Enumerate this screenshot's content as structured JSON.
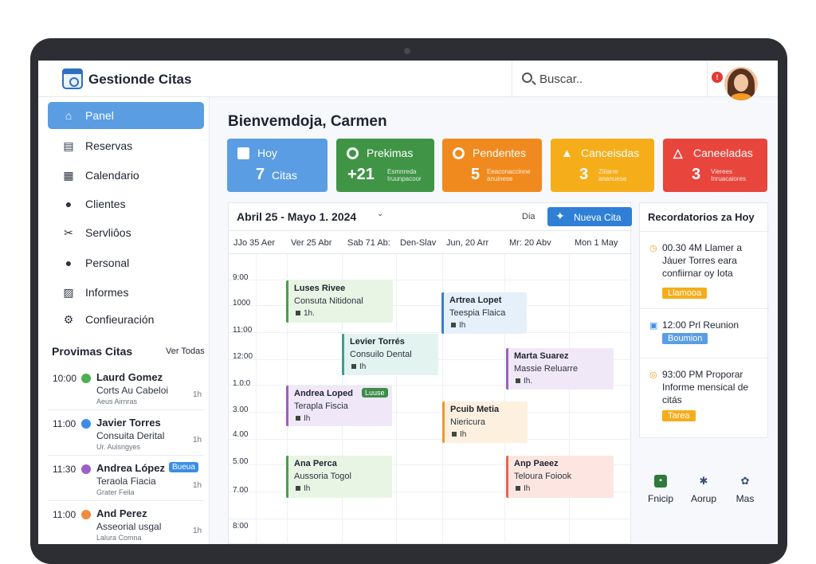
{
  "app": {
    "title": "Gestionde Citas"
  },
  "search": {
    "placeholder": "Buscar.."
  },
  "notifications": {
    "count": "!"
  },
  "sidebar": {
    "items": [
      {
        "label": "Panel",
        "icon": "home-icon",
        "active": true
      },
      {
        "label": "Reservas",
        "icon": "bookings-icon"
      },
      {
        "label": "Calendario",
        "icon": "calendar-icon"
      },
      {
        "label": "Clientes",
        "icon": "user-icon"
      },
      {
        "label": "Servliôos",
        "icon": "scissors-icon"
      },
      {
        "label": "Personal",
        "icon": "person-icon"
      },
      {
        "label": "Informes",
        "icon": "chart-icon"
      },
      {
        "label": "Confieuración",
        "icon": "gear-icon"
      }
    ],
    "upcoming_title": "Provimas Citas",
    "upcoming_link": "Ver Todas",
    "upcoming": [
      {
        "time": "10:00",
        "name": "Laurd Gomez",
        "service": "Corts Au Cabeloi",
        "staff": "Aeus Airnras",
        "duration": "1h",
        "color": "#4caf50",
        "badge": ""
      },
      {
        "time": "11:00",
        "name": "Javier Torres",
        "service": "Consuita Derital",
        "staff": "Ur. Auisngyes",
        "duration": "1h",
        "color": "#3a8ee6",
        "badge": ""
      },
      {
        "time": "11:30",
        "name": "Andrea López",
        "service": "Teraola Fiacia",
        "staff": "Grater Feila",
        "duration": "1h",
        "color": "#9c5fc4",
        "badge": "Bueua"
      },
      {
        "time": "11:00",
        "name": "And Perez",
        "service": "Asseorial usgal",
        "staff": "Lalura Comna",
        "duration": "1h",
        "color": "#f08c3c",
        "badge": ""
      }
    ]
  },
  "main": {
    "welcome": "Bienvemdoja, Carmen",
    "stats": [
      {
        "label": "Hoy",
        "value": "7",
        "suffix": "Citas",
        "detail": "",
        "color": "#5a9de3",
        "icon": "calendar-icon"
      },
      {
        "label": "Prekimas",
        "value": "+21",
        "suffix": "",
        "detail": "Esmnreda Iruunpacoor",
        "color": "#3f9545",
        "icon": "circle-icon"
      },
      {
        "label": "Pendentes",
        "value": "5",
        "suffix": "",
        "detail": "Eeaconaccinne anuinese",
        "color": "#f08a1e",
        "icon": "circle-icon"
      },
      {
        "label": "Canceisdas",
        "value": "3",
        "suffix": "",
        "detail": "Ziiiarre ananuese",
        "color": "#f6ad1a",
        "icon": "warning-icon"
      },
      {
        "label": "Caneeladas",
        "value": "3",
        "suffix": "",
        "detail": "Vierees Inruacaiores",
        "color": "#e8453c",
        "icon": "alert-icon"
      }
    ]
  },
  "calendar": {
    "range": "Abril 25 - Mayo 1. 2024",
    "view": "Dia",
    "new_button": "Nueva Cita",
    "days": [
      "JJo 35 Aer",
      "Ver 25 Abr",
      "Sab 71 Ab:",
      "Den-Slav",
      "Jun, 20 Arr",
      "Mr: 20 Abv",
      "Mon 1 May"
    ],
    "hours": [
      "9:00",
      "1000",
      "11:00",
      "12:00",
      "1.0:0",
      "3.00",
      "4.00",
      "5.00",
      "7.00",
      "8:00"
    ],
    "events": [
      {
        "title": "Luses Rivee",
        "subtitle": "Consuta Nitidonal",
        "duration": "1h.",
        "badge": "",
        "bg": "#e8f5e4",
        "border": "#4a9c4e"
      },
      {
        "title": "Artrea Lopet",
        "subtitle": "Teespia Flaica",
        "duration": "Ih",
        "badge": "",
        "bg": "#e6f0fb",
        "border": "#3a7ec9"
      },
      {
        "title": "Levier Torrés",
        "subtitle": "Consuilo Dental",
        "duration": "Ih",
        "badge": "",
        "bg": "#e3f3f0",
        "border": "#3f9e8c"
      },
      {
        "title": "Marta Suarez",
        "subtitle": "Massie Reluarre",
        "duration": "Ih.",
        "badge": "",
        "bg": "#f1e8f7",
        "border": "#9a5fc0"
      },
      {
        "title": "Andrea Loped",
        "subtitle": "Terapla Fiscia",
        "duration": "Ih",
        "badge": "Luuse",
        "bg": "#f0e8f8",
        "border": "#9a5fc0"
      },
      {
        "title": "Pcuib Metia",
        "subtitle": "Niericura",
        "duration": "Ih",
        "badge": "",
        "bg": "#fdf0de",
        "border": "#f0962e"
      },
      {
        "title": "Ana Perca",
        "subtitle": "Aussoria Togol",
        "duration": "Ih",
        "badge": "",
        "bg": "#e8f5e4",
        "border": "#4a9c4e"
      },
      {
        "title": "Anp Paeez",
        "subtitle": "Teloura Foiook",
        "duration": "Ih",
        "badge": "",
        "bg": "#fde6e1",
        "border": "#e8654c"
      }
    ]
  },
  "reminders": {
    "title": "Recordatorios za Hoy",
    "items": [
      {
        "text": "00.30 4M  Llamer a Jáuer Torres eara confiirnar oy Iota",
        "badge": "Llamooa",
        "badge_color": "#f6ad1a",
        "icon": "clock-icon"
      },
      {
        "text": "12:00 Prl Reunion",
        "badge": "Boumion",
        "badge_color": "#5a9de3",
        "icon": "meeting-icon"
      },
      {
        "text": "93:00 PM  Proporar Informe mensical de citás",
        "badge": "Tarea",
        "badge_color": "#f6ad1a",
        "icon": "task-icon"
      }
    ]
  },
  "quick_actions": [
    {
      "label": "Fnicip",
      "icon": "start-icon"
    },
    {
      "label": "Aorup",
      "icon": "group-icon"
    },
    {
      "label": "Mas",
      "icon": "more-icon"
    }
  ]
}
